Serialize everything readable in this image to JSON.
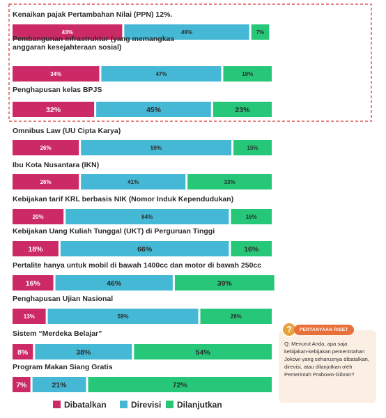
{
  "chart_data": {
    "type": "bar",
    "stacked": true,
    "orientation": "horizontal",
    "categories": [
      "Kenaikan pajak Pertambahan Nilai (PPN) 12%.",
      "Pembangunan Infrastruktur (yang memangkas anggaran kesejahteraan sosial)",
      "Penghapusan kelas BPJS",
      "Omnibus Law (UU Cipta Karya)",
      "Ibu Kota Nusantara (IKN)",
      "Kebijakan tarif KRL berbasis NIK (Nomor Induk Kependudukan)",
      "Kebijakan Uang Kuliah Tunggal (UKT) di Perguruan Tinggi",
      "Pertalite hanya untuk mobil di bawah 1400cc dan motor di bawah 250cc",
      "Penghapusan Ujian Nasional",
      "Sistem “Merdeka Belajar”",
      "Program Makan Siang Gratis"
    ],
    "category_lines": [
      [
        "Kenaikan pajak Pertambahan Nilai (PPN) 12%."
      ],
      [
        "Pembangunan Infrastruktur (yang memangkas",
        "anggaran kesejahteraan sosial)"
      ],
      [
        "Penghapusan kelas BPJS"
      ],
      [
        "Omnibus Law (UU Cipta Karya)"
      ],
      [
        "Ibu Kota Nusantara (IKN)"
      ],
      [
        "Kebijakan tarif KRL berbasis NIK (Nomor Induk Kependudukan)"
      ],
      [
        "Kebijakan Uang Kuliah Tunggal (UKT) di Perguruan Tinggi"
      ],
      [
        "Pertalite hanya untuk mobil di bawah 1400cc dan motor di bawah 250cc"
      ],
      [
        "Penghapusan Ujian Nasional"
      ],
      [
        "Sistem “Merdeka Belajar”"
      ],
      [
        "Program Makan Siang Gratis"
      ]
    ],
    "series": [
      {
        "name": "Dibatalkan",
        "color": "#cc2a66",
        "values": [
          43,
          34,
          32,
          26,
          26,
          20,
          18,
          16,
          13,
          8,
          7
        ]
      },
      {
        "name": "Direvisi",
        "color": "#45b8d6",
        "values": [
          49,
          47,
          45,
          59,
          41,
          64,
          66,
          46,
          59,
          38,
          21
        ]
      },
      {
        "name": "Dilanjutkan",
        "color": "#27c77a",
        "values": [
          7,
          19,
          23,
          15,
          33,
          16,
          16,
          39,
          28,
          54,
          72
        ]
      }
    ],
    "value_format": "percent",
    "highlighted_categories": [
      0,
      1,
      2
    ],
    "legend_position": "bottom",
    "xlim": [
      0,
      100
    ]
  },
  "question": {
    "badge": "PERTANYAAN RISET",
    "icon": "question-mark-icon",
    "text": "Q: Menurut Anda, apa saja kebijakan-kebijakan pemerintahan Jokowi yang seharusnya dibatalkan, direvisi, atau dilanjutkan oleh Pemerintah Prabowo-Gibran?"
  },
  "colors": {
    "highlight_border": "#d9302c",
    "question_bg": "#fbeee2",
    "badge_bg": "#e8703a"
  }
}
